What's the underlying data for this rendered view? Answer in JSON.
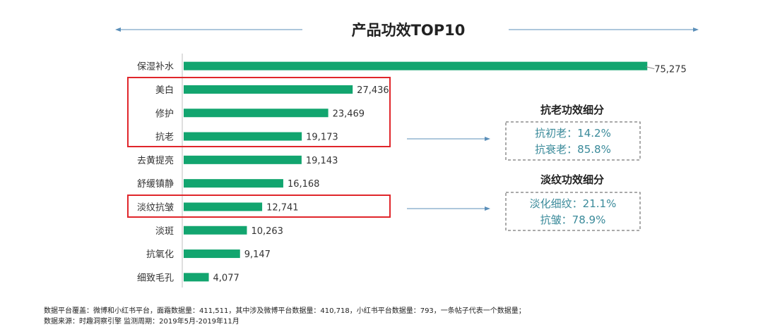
{
  "chart_data": {
    "type": "bar",
    "orientation": "horizontal",
    "title": "产品功效TOP10",
    "categories": [
      "保湿补水",
      "美白",
      "修护",
      "抗老",
      "去黄提亮",
      "舒缓镇静",
      "淡纹抗皱",
      "淡斑",
      "抗氧化",
      "细致毛孔"
    ],
    "values": [
      75275,
      27436,
      23469,
      19173,
      19143,
      16168,
      12741,
      10263,
      9147,
      4077
    ],
    "value_labels": [
      "75,275",
      "27,436",
      "23,469",
      "19,173",
      "19,143",
      "16,168",
      "12,741",
      "10,263",
      "9,147",
      "4,077"
    ],
    "xlim": [
      0,
      78000
    ],
    "bar_color": "#12a56f",
    "highlight_color": "#e0262b",
    "highlight_groups": [
      [
        "美白",
        "修护",
        "抗老"
      ],
      [
        "淡纹抗皱"
      ]
    ]
  },
  "annotations": [
    {
      "title": "抗老功效细分",
      "lines": [
        "抗初老：14.2%",
        "抗衰老：85.8%"
      ],
      "values": [
        14.2,
        85.8
      ]
    },
    {
      "title": "淡纹功效细分",
      "lines": [
        "淡化细纹：21.1%",
        "抗皱：78.9%"
      ],
      "values": [
        21.1,
        78.9
      ]
    }
  ],
  "footer": {
    "line1": "数据平台覆盖：微博和小红书平台，面霜数据量：411,511，其中涉及微博平台数据量：410,718，小红书平台数据量：793，一条帖子代表一个数据量；",
    "line2": "数据来源：时趣洞察引擎  监测周期：2019年5月-2019年11月"
  },
  "colors": {
    "arrow": "#5b8fb9",
    "axis": "#bfbfbf",
    "text": "#333333",
    "annotation_text": "#3a8a9a"
  }
}
